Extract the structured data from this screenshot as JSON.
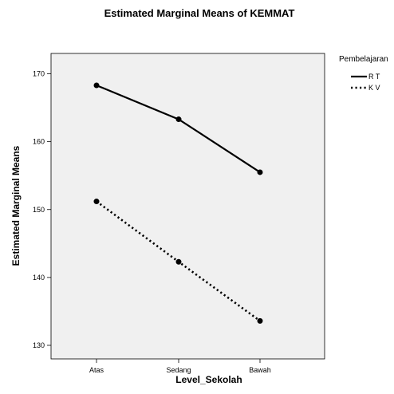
{
  "chart_data": {
    "type": "line",
    "title": "Estimated Marginal Means of KEMMAT",
    "xlabel": "Level_Sekolah",
    "ylabel": "Estimated Marginal Means",
    "categories": [
      "Atas",
      "Sedang",
      "Bawah"
    ],
    "ylim": [
      128,
      173
    ],
    "yticks": [
      130,
      140,
      150,
      160,
      170
    ],
    "grid": false,
    "legend": {
      "title": "Pembelajaran",
      "position": "top-right"
    },
    "series": [
      {
        "name": "R T",
        "values": [
          168.3,
          163.3,
          155.5
        ],
        "style": "solid",
        "color": "#000000"
      },
      {
        "name": "K V",
        "values": [
          151.2,
          142.3,
          133.6
        ],
        "style": "dotted",
        "color": "#000000"
      }
    ],
    "colors": {
      "plot_background": "#f0f0f0",
      "line": "#000000"
    }
  }
}
